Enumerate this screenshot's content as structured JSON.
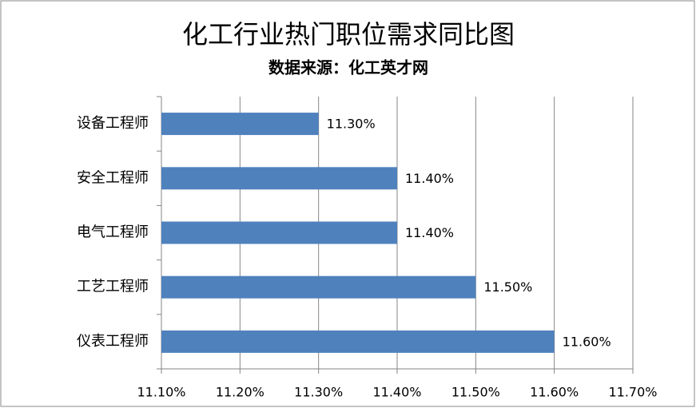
{
  "chart_data": {
    "type": "bar",
    "orientation": "horizontal",
    "title": "化工行业热门职位需求同比图",
    "subtitle": "数据来源：化工英才网",
    "categories": [
      "设备工程师",
      "安全工程师",
      "电气工程师",
      "工艺工程师",
      "仪表工程师"
    ],
    "values": [
      11.3,
      11.4,
      11.4,
      11.5,
      11.6
    ],
    "value_labels": [
      "11.30%",
      "11.40%",
      "11.40%",
      "11.50%",
      "11.60%"
    ],
    "color": "#4f81bd",
    "xlim": [
      11.1,
      11.7
    ],
    "xticks": [
      {
        "value": 11.1,
        "label": "11.10%"
      },
      {
        "value": 11.2,
        "label": "11.20%"
      },
      {
        "value": 11.3,
        "label": "11.30%"
      },
      {
        "value": 11.4,
        "label": "11.40%"
      },
      {
        "value": 11.5,
        "label": "11.50%"
      },
      {
        "value": 11.6,
        "label": "11.60%"
      },
      {
        "value": 11.7,
        "label": "11.70%"
      }
    ],
    "grid": true
  }
}
